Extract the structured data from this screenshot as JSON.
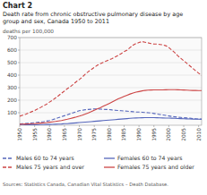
{
  "chart_data": {
    "type": "line",
    "title": "Chart 2",
    "subtitle": [
      "Death rate from chronic obstructive pulmonary disease by age",
      "group and sex, Canada 1950 to 2011"
    ],
    "y_label": "deaths per 100,000",
    "source": "Sources: Statistics Canada, Canadian Vital Statistics – Death Database.",
    "x": [
      1950,
      1951,
      1952,
      1953,
      1954,
      1955,
      1956,
      1957,
      1958,
      1959,
      1960,
      1961,
      1962,
      1963,
      1964,
      1965,
      1966,
      1967,
      1968,
      1969,
      1970,
      1971,
      1972,
      1973,
      1974,
      1975,
      1976,
      1977,
      1978,
      1979,
      1980,
      1981,
      1982,
      1983,
      1984,
      1985,
      1986,
      1987,
      1988,
      1989,
      1990,
      1991,
      1992,
      1993,
      1994,
      1995,
      1996,
      1997,
      1998,
      1999,
      2000,
      2001,
      2002,
      2003,
      2004,
      2005,
      2006,
      2007,
      2008,
      2009,
      2010,
      2011
    ],
    "xlim": [
      1950,
      2011
    ],
    "xticks": [
      1950,
      1955,
      1960,
      1965,
      1970,
      1975,
      1980,
      1985,
      1990,
      1995,
      2000,
      2005,
      2010
    ],
    "ylim": [
      0,
      700
    ],
    "yticks": [
      100,
      200,
      300,
      400,
      500,
      600,
      700
    ],
    "grid": true,
    "series": [
      {
        "name": "Males 60 to 74 years",
        "color": "#5566bb",
        "line_style": "dashed",
        "values": [
          10,
          12,
          14,
          16,
          18,
          20,
          23,
          26,
          29,
          33,
          38,
          44,
          52,
          60,
          68,
          76,
          84,
          92,
          100,
          108,
          116,
          120,
          124,
          126,
          128,
          130,
          130,
          129,
          127,
          126,
          125,
          122,
          120,
          118,
          116,
          114,
          112,
          110,
          108,
          106,
          105,
          104,
          102,
          100,
          97,
          94,
          90,
          86,
          82,
          78,
          74,
          70,
          67,
          64,
          62,
          60,
          58,
          56,
          54,
          52,
          50,
          49
        ]
      },
      {
        "name": "Females 60 to 74 years",
        "color": "#5566bb",
        "line_style": "solid",
        "values": [
          2,
          2,
          3,
          3,
          3,
          4,
          4,
          5,
          5,
          6,
          6,
          7,
          8,
          9,
          10,
          12,
          13,
          15,
          17,
          19,
          21,
          23,
          25,
          27,
          29,
          31,
          33,
          35,
          37,
          39,
          41,
          43,
          45,
          47,
          49,
          51,
          53,
          55,
          57,
          58,
          59,
          60,
          61,
          61,
          61,
          61,
          60,
          59,
          58,
          57,
          57,
          56,
          55,
          54,
          53,
          52,
          51,
          50,
          49,
          48,
          48,
          47
        ]
      },
      {
        "name": "Males 75 years and over",
        "color": "#cc4444",
        "line_style": "dashed",
        "values": [
          72,
          80,
          88,
          98,
          108,
          118,
          130,
          142,
          155,
          168,
          185,
          200,
          218,
          236,
          255,
          273,
          293,
          308,
          328,
          348,
          365,
          385,
          408,
          428,
          445,
          462,
          478,
          492,
          502,
          512,
          522,
          532,
          545,
          558,
          572,
          588,
          600,
          620,
          640,
          652,
          660,
          668,
          663,
          658,
          652,
          648,
          648,
          645,
          642,
          635,
          620,
          600,
          580,
          555,
          535,
          515,
          495,
          475,
          455,
          435,
          415,
          400
        ]
      },
      {
        "name": "Females 75 years and older",
        "color": "#cc4444",
        "line_style": "solid",
        "values": [
          8,
          9,
          10,
          11,
          12,
          13,
          15,
          17,
          19,
          21,
          24,
          27,
          30,
          34,
          38,
          43,
          48,
          54,
          60,
          66,
          73,
          81,
          90,
          99,
          109,
          120,
          130,
          140,
          151,
          162,
          174,
          186,
          198,
          210,
          220,
          230,
          240,
          249,
          257,
          264,
          269,
          274,
          278,
          280,
          281,
          282,
          282,
          282,
          282,
          283,
          284,
          284,
          284,
          283,
          282,
          281,
          280,
          279,
          278,
          278,
          277,
          277
        ]
      }
    ]
  }
}
